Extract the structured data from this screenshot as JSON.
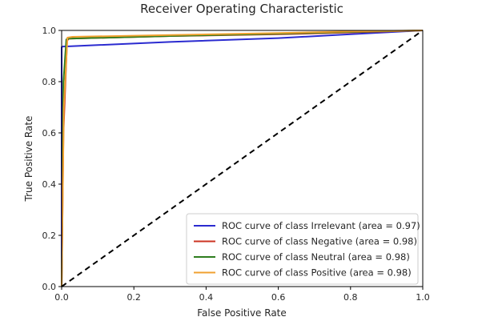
{
  "chart_data": {
    "type": "line",
    "title": "Receiver Operating Characteristic",
    "xlabel": "False Positive Rate",
    "ylabel": "True Positive Rate",
    "xlim": [
      0.0,
      1.0
    ],
    "ylim": [
      0.0,
      1.0
    ],
    "xticks": [
      "0.0",
      "0.2",
      "0.4",
      "0.6",
      "0.8",
      "1.0"
    ],
    "yticks": [
      "0.0",
      "0.2",
      "0.4",
      "0.6",
      "0.8",
      "1.0"
    ],
    "grid": false,
    "legend_position": "lower-right",
    "series": [
      {
        "name": "ROC curve of class Irrelevant (area = 0.97)",
        "color": "#2b2bd0",
        "x": [
          0.0,
          0.0,
          0.003,
          0.02,
          0.3,
          0.6,
          0.8,
          1.0
        ],
        "y": [
          0.0,
          0.935,
          0.937,
          0.938,
          0.955,
          0.97,
          0.985,
          1.0
        ]
      },
      {
        "name": "ROC curve of class Negative (area = 0.98)",
        "color": "#cc3322",
        "x": [
          0.0,
          0.005,
          0.015,
          0.02,
          0.3,
          0.6,
          0.8,
          1.0
        ],
        "y": [
          0.0,
          0.6,
          0.96,
          0.968,
          0.978,
          0.985,
          0.992,
          1.0
        ]
      },
      {
        "name": "ROC curve of class Neutral (area = 0.98)",
        "color": "#2e7d1e",
        "x": [
          0.0,
          0.005,
          0.013,
          0.02,
          0.3,
          0.6,
          0.8,
          1.0
        ],
        "y": [
          0.0,
          0.8,
          0.965,
          0.968,
          0.978,
          0.987,
          0.994,
          1.0
        ]
      },
      {
        "name": "ROC curve of class Positive (area = 0.98)",
        "color": "#f0a030",
        "x": [
          0.0,
          0.006,
          0.016,
          0.03,
          0.3,
          0.6,
          0.8,
          1.0
        ],
        "y": [
          0.0,
          0.7,
          0.972,
          0.975,
          0.982,
          0.99,
          0.996,
          1.0
        ]
      }
    ],
    "reference_line": {
      "x": [
        0.0,
        1.0
      ],
      "y": [
        0.0,
        1.0
      ],
      "style": "dashed",
      "color": "#000000"
    }
  }
}
